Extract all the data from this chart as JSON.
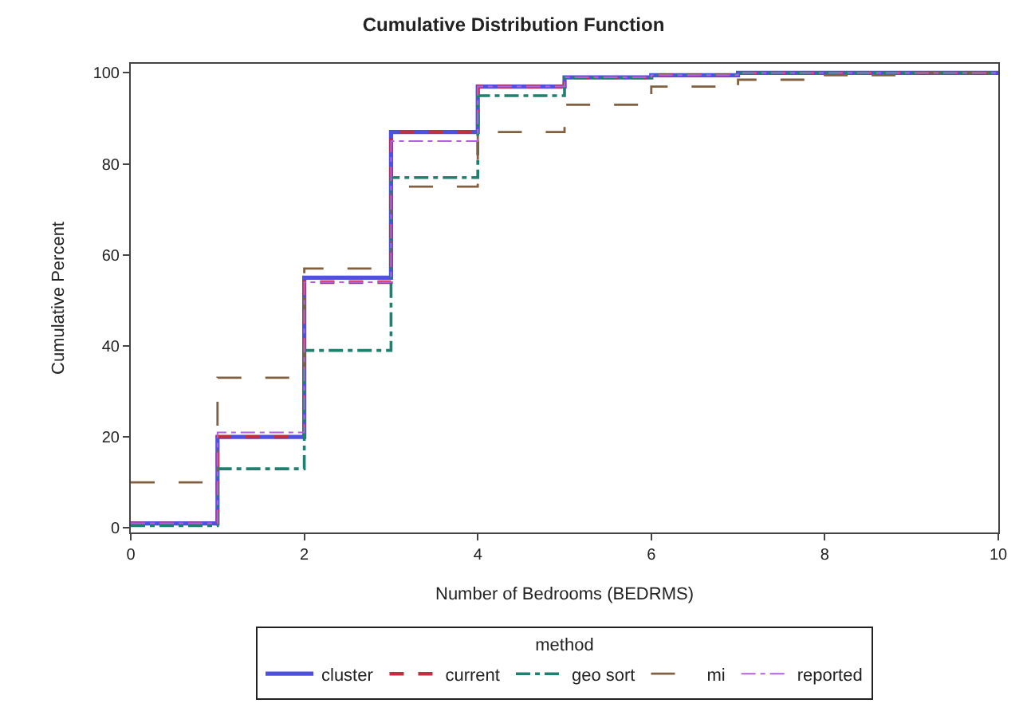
{
  "chart_data": {
    "type": "step",
    "title": "Cumulative Distribution Function",
    "xlabel": "Number of Bedrooms (BEDRMS)",
    "ylabel": "Cumulative Percent",
    "legend_title": "method",
    "x": [
      0,
      1,
      2,
      3,
      4,
      5,
      6,
      7,
      8,
      9,
      10
    ],
    "series": [
      {
        "name": "cluster",
        "color": "#5050e0",
        "line_style": "solid",
        "values": [
          1,
          20,
          55,
          87,
          97,
          99,
          99.5,
          100,
          100,
          100,
          100
        ]
      },
      {
        "name": "current",
        "color": "#c03040",
        "line_style": "dashed",
        "values": [
          1,
          20,
          54,
          87,
          97,
          99,
          99.5,
          100,
          100,
          100,
          100
        ]
      },
      {
        "name": "geo sort",
        "color": "#208070",
        "line_style": "dashdot",
        "values": [
          0.5,
          13,
          39,
          77,
          95,
          99,
          99.5,
          100,
          100,
          100,
          100
        ]
      },
      {
        "name": "mi",
        "color": "#806040",
        "line_style": "longdash",
        "values": [
          10,
          33,
          57,
          75,
          87,
          93,
          97,
          98.5,
          99.5,
          100,
          100
        ]
      },
      {
        "name": "reported",
        "color": "#b060e0",
        "line_style": "dashdot",
        "values": [
          1,
          21,
          54,
          85,
          97,
          99,
          99.5,
          100,
          100,
          100,
          100
        ]
      }
    ],
    "xlim": [
      0,
      10
    ],
    "xticks": [
      0,
      2,
      4,
      6,
      8,
      10
    ],
    "ylim": [
      -1,
      102
    ],
    "yticks": [
      0,
      20,
      40,
      60,
      80,
      100
    ],
    "legend": "bottom",
    "marker": "none"
  }
}
